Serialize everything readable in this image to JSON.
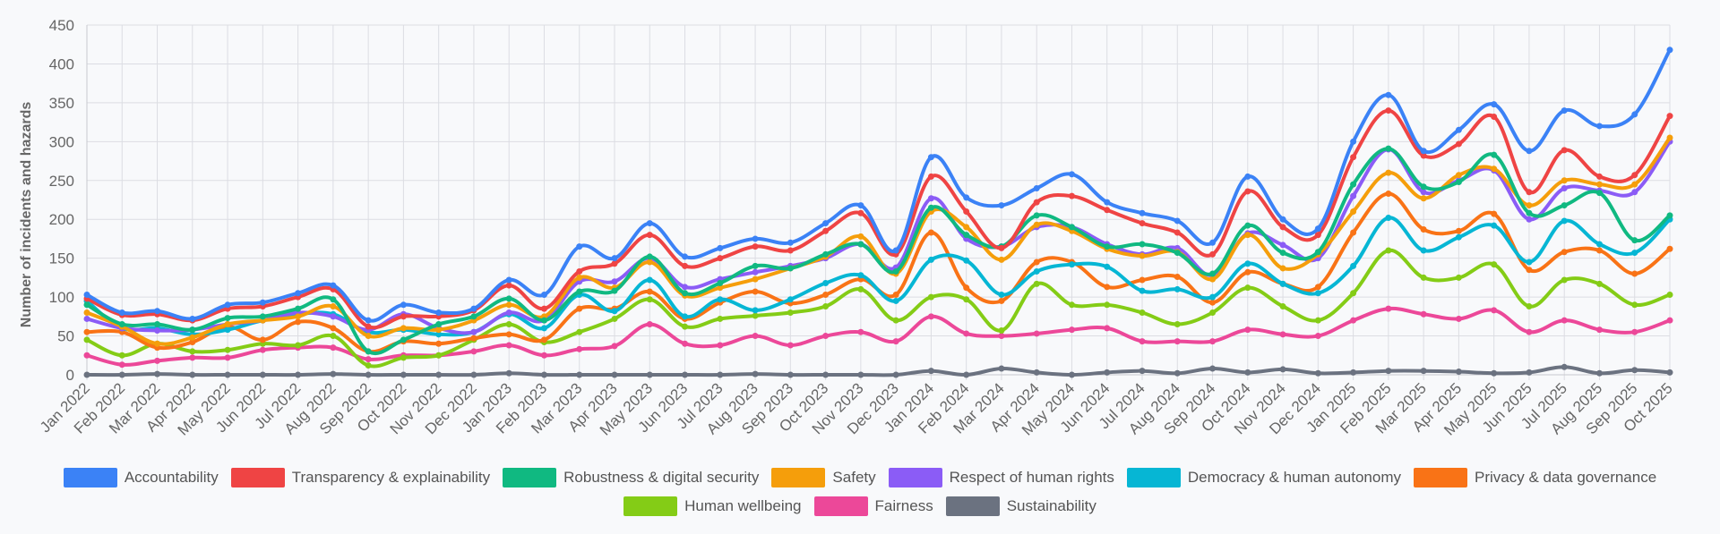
{
  "chart_data": {
    "type": "line",
    "ylabel": "Number of incidents and hazards",
    "xlabel": "",
    "ylim": [
      0,
      450
    ],
    "yticks": [
      0,
      50,
      100,
      150,
      200,
      250,
      300,
      350,
      400,
      450
    ],
    "grid": true,
    "legend_position": "bottom",
    "categories": [
      "Jan 2022",
      "Feb 2022",
      "Mar 2022",
      "Apr 2022",
      "May 2022",
      "Jun 2022",
      "Jul 2022",
      "Aug 2022",
      "Sep 2022",
      "Oct 2022",
      "Nov 2022",
      "Dec 2022",
      "Jan 2023",
      "Feb 2023",
      "Mar 2023",
      "Apr 2023",
      "May 2023",
      "Jun 2023",
      "Jul 2023",
      "Aug 2023",
      "Sep 2023",
      "Oct 2023",
      "Nov 2023",
      "Dec 2023",
      "Jan 2024",
      "Feb 2024",
      "Mar 2024",
      "Apr 2024",
      "May 2024",
      "Jun 2024",
      "Jul 2024",
      "Aug 2024",
      "Sep 2024",
      "Oct 2024",
      "Nov 2024",
      "Dec 2024",
      "Jan 2025",
      "Feb 2025",
      "Mar 2025",
      "Apr 2025",
      "May 2025",
      "Jun 2025",
      "Jul 2025",
      "Aug 2025",
      "Sep 2025",
      "Oct 2025"
    ],
    "series": [
      {
        "name": "Accountability",
        "color": "#3b82f6",
        "values": [
          103,
          80,
          82,
          72,
          90,
          93,
          105,
          115,
          70,
          90,
          80,
          85,
          122,
          103,
          165,
          150,
          195,
          152,
          163,
          175,
          170,
          195,
          218,
          160,
          280,
          228,
          218,
          240,
          258,
          222,
          208,
          198,
          170,
          255,
          200,
          188,
          300,
          360,
          288,
          315,
          348,
          288,
          340,
          320,
          335,
          418
        ]
      },
      {
        "name": "Transparency & explainability",
        "color": "#ef4444",
        "values": [
          98,
          77,
          78,
          70,
          85,
          88,
          100,
          110,
          62,
          75,
          75,
          83,
          115,
          85,
          133,
          143,
          180,
          140,
          150,
          165,
          160,
          185,
          208,
          155,
          255,
          210,
          163,
          222,
          230,
          212,
          195,
          183,
          155,
          236,
          190,
          180,
          280,
          340,
          282,
          297,
          332,
          235,
          289,
          255,
          257,
          333
        ]
      },
      {
        "name": "Robustness & digital security",
        "color": "#10b981",
        "values": [
          90,
          65,
          65,
          58,
          73,
          75,
          85,
          97,
          30,
          45,
          65,
          75,
          98,
          70,
          107,
          108,
          152,
          105,
          118,
          140,
          137,
          155,
          168,
          133,
          215,
          180,
          165,
          205,
          190,
          165,
          168,
          157,
          130,
          192,
          157,
          158,
          245,
          291,
          242,
          248,
          283,
          208,
          218,
          234,
          173,
          205
        ]
      },
      {
        "name": "Safety",
        "color": "#f59e0b",
        "values": [
          80,
          62,
          40,
          48,
          65,
          70,
          75,
          88,
          50,
          60,
          58,
          70,
          90,
          75,
          125,
          112,
          145,
          102,
          112,
          123,
          137,
          152,
          178,
          130,
          210,
          190,
          148,
          193,
          185,
          162,
          153,
          158,
          123,
          180,
          137,
          155,
          210,
          260,
          227,
          257,
          265,
          218,
          250,
          245,
          245,
          305
        ]
      },
      {
        "name": "Respect of human rights",
        "color": "#8b5cf6",
        "values": [
          72,
          60,
          57,
          58,
          65,
          70,
          80,
          75,
          58,
          78,
          60,
          55,
          80,
          70,
          120,
          120,
          150,
          113,
          123,
          132,
          140,
          150,
          168,
          138,
          227,
          175,
          165,
          190,
          190,
          168,
          155,
          163,
          128,
          182,
          167,
          150,
          230,
          290,
          235,
          250,
          263,
          200,
          240,
          237,
          235,
          300
        ]
      },
      {
        "name": "Democracy & human autonomy",
        "color": "#06b6d4",
        "values": [
          95,
          60,
          60,
          52,
          58,
          70,
          78,
          78,
          55,
          58,
          52,
          55,
          78,
          60,
          103,
          82,
          122,
          75,
          97,
          83,
          97,
          118,
          128,
          95,
          148,
          147,
          103,
          133,
          142,
          139,
          108,
          110,
          100,
          143,
          117,
          105,
          140,
          202,
          160,
          177,
          192,
          145,
          198,
          168,
          157,
          200
        ]
      },
      {
        "name": "Privacy & data governance",
        "color": "#f97316",
        "values": [
          55,
          55,
          35,
          42,
          62,
          45,
          68,
          60,
          30,
          43,
          40,
          47,
          52,
          45,
          85,
          85,
          107,
          72,
          93,
          107,
          92,
          103,
          123,
          103,
          183,
          112,
          95,
          145,
          145,
          113,
          122,
          126,
          93,
          132,
          117,
          113,
          183,
          233,
          187,
          185,
          207,
          135,
          158,
          160,
          130,
          162
        ]
      },
      {
        "name": "Human wellbeing",
        "color": "#84cc16",
        "values": [
          45,
          25,
          40,
          30,
          32,
          40,
          38,
          50,
          12,
          22,
          25,
          45,
          65,
          42,
          55,
          72,
          97,
          62,
          72,
          76,
          80,
          88,
          110,
          70,
          100,
          97,
          57,
          117,
          90,
          90,
          80,
          65,
          80,
          112,
          88,
          70,
          105,
          160,
          125,
          125,
          142,
          88,
          122,
          117,
          90,
          103
        ]
      },
      {
        "name": "Fairness",
        "color": "#ec4899",
        "values": [
          25,
          13,
          18,
          22,
          22,
          32,
          35,
          35,
          20,
          25,
          25,
          30,
          38,
          25,
          33,
          37,
          65,
          40,
          38,
          50,
          38,
          50,
          55,
          43,
          75,
          53,
          50,
          53,
          58,
          60,
          43,
          43,
          43,
          58,
          52,
          50,
          70,
          85,
          78,
          72,
          83,
          55,
          70,
          58,
          55,
          70
        ]
      },
      {
        "name": "Sustainability",
        "color": "#6b7280",
        "values": [
          0,
          0,
          1,
          0,
          0,
          0,
          0,
          1,
          0,
          0,
          0,
          0,
          2,
          0,
          0,
          0,
          0,
          0,
          0,
          1,
          0,
          0,
          0,
          0,
          5,
          0,
          8,
          3,
          0,
          3,
          5,
          2,
          8,
          3,
          7,
          2,
          3,
          5,
          5,
          4,
          2,
          3,
          10,
          2,
          6,
          3
        ]
      }
    ]
  }
}
